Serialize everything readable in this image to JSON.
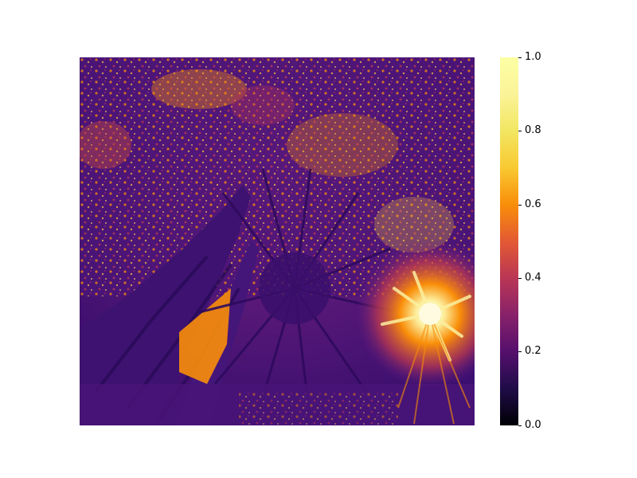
{
  "image": {
    "description": "",
    "colormap": "inferno"
  },
  "colorbar": {
    "ticks": [
      "0.0",
      "0.2",
      "0.4",
      "0.6",
      "0.8",
      "1.0"
    ],
    "min": 0.0,
    "max": 1.0
  },
  "colors": {
    "deep_purple": "#3b0f6f",
    "mid_purple": "#5a1a8c",
    "orange": "#f98e09",
    "yellow": "#fcffa4",
    "sun_core": "#fff6c8"
  }
}
